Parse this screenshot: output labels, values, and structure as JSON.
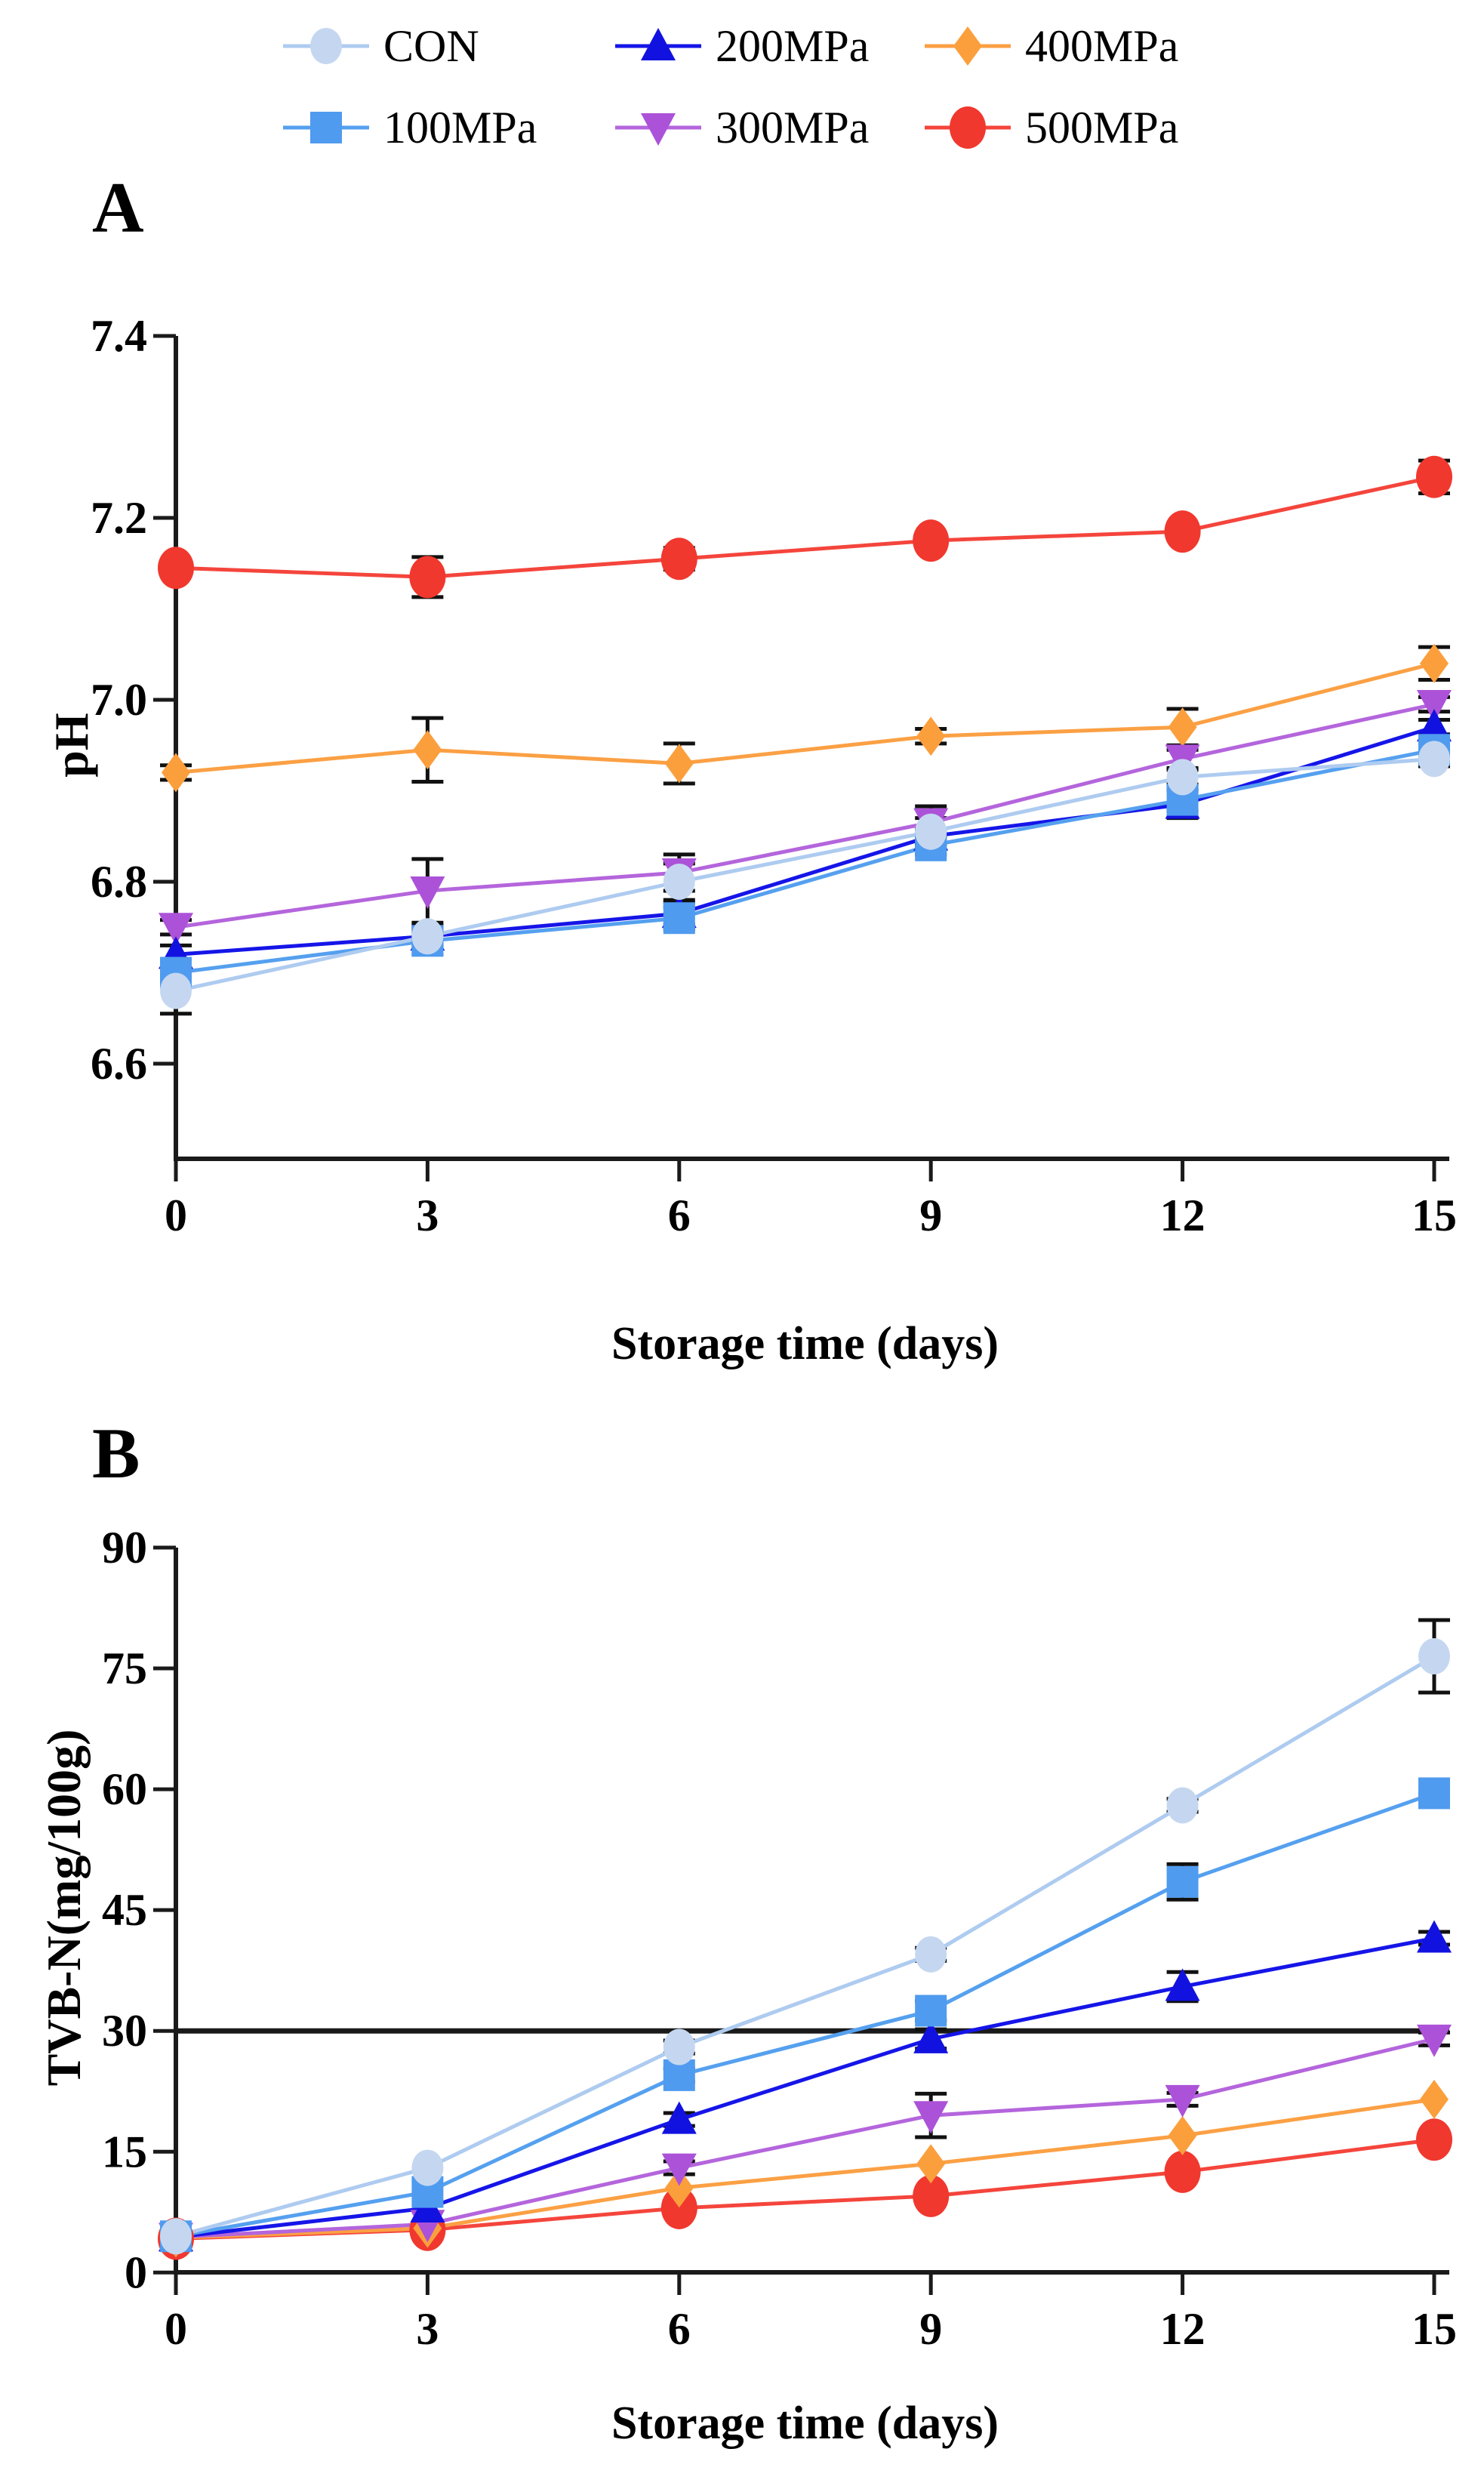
{
  "legend": {
    "rows": [
      [
        {
          "series": "CON",
          "label": "CON"
        },
        {
          "series": "200MPa",
          "label": "200MPa"
        },
        {
          "series": "400MPa",
          "label": "400MPa"
        }
      ],
      [
        {
          "series": "100MPa",
          "label": "100MPa"
        },
        {
          "series": "300MPa",
          "label": "300MPa"
        },
        {
          "series": "500MPa",
          "label": "500MPa"
        }
      ]
    ]
  },
  "series_styles": {
    "CON": {
      "marker": "circle",
      "color": "#C5D7F0",
      "line_color": "#AECBF0"
    },
    "100MPa": {
      "marker": "square",
      "color": "#4F9BEF",
      "line_color": "#55A0EF"
    },
    "200MPa": {
      "marker": "triangle-up",
      "color": "#1212E0",
      "line_color": "#1515E8"
    },
    "300MPa": {
      "marker": "triangle-down",
      "color": "#AC52D8",
      "line_color": "#B465DC"
    },
    "400MPa": {
      "marker": "diamond",
      "color": "#FB9F3D",
      "line_color": "#FBA044"
    },
    "500MPa": {
      "marker": "circle-large",
      "color": "#F0382E",
      "line_color": "#F4453C"
    }
  },
  "error_bar_color": "#111111",
  "axis_color": "#1a1a1a",
  "chart_data": [
    {
      "id": "A",
      "type": "line",
      "panel_label": "A",
      "xlabel": "Storage time (days)",
      "ylabel": "pH",
      "x": [
        0,
        3,
        6,
        9,
        12,
        15
      ],
      "x_tick_labels": [
        "0",
        "3",
        "6",
        "9",
        "12",
        "15"
      ],
      "y_ticks": [
        7.4,
        7.2,
        7.0,
        6.8,
        6.6
      ],
      "y_tick_labels": [
        "7.4",
        "7.2",
        "7.0",
        "6.8",
        "6.6"
      ],
      "ylim": [
        6.5,
        7.4
      ],
      "grid": false,
      "series": [
        {
          "name": "CON",
          "values": [
            6.68,
            6.74,
            6.8,
            6.855,
            6.915,
            6.935
          ],
          "errors": [
            0.025,
            0.012,
            0.02,
            0.015,
            0.008,
            0.008
          ]
        },
        {
          "name": "100MPa",
          "values": [
            6.7,
            6.735,
            6.76,
            6.84,
            6.89,
            6.945
          ],
          "errors": [
            0.012,
            0.015,
            0.012,
            0.01,
            0.012,
            0.008
          ]
        },
        {
          "name": "200MPa",
          "values": [
            6.72,
            6.74,
            6.765,
            6.85,
            6.885,
            6.97
          ],
          "errors": [
            0.01,
            0.008,
            0.012,
            0.008,
            0.015,
            0.008
          ]
        },
        {
          "name": "300MPa",
          "values": [
            6.75,
            6.79,
            6.81,
            6.865,
            6.935,
            6.995
          ],
          "errors": [
            0.008,
            0.035,
            0.02,
            0.018,
            0.01,
            0.008
          ]
        },
        {
          "name": "400MPa",
          "values": [
            6.92,
            6.945,
            6.93,
            6.96,
            6.97,
            7.04
          ],
          "errors": [
            0.008,
            0.035,
            0.022,
            0.008,
            0.02,
            0.018
          ]
        },
        {
          "name": "500MPa",
          "values": [
            7.145,
            7.135,
            7.155,
            7.175,
            7.185,
            7.245
          ],
          "errors": [
            0.008,
            0.022,
            0.012,
            0.008,
            0.008,
            0.018
          ]
        }
      ]
    },
    {
      "id": "B",
      "type": "line",
      "panel_label": "B",
      "xlabel": "Storage time (days)",
      "ylabel": "TVB-N(mg/100g)",
      "x": [
        0,
        3,
        6,
        9,
        12,
        15
      ],
      "x_tick_labels": [
        "0",
        "3",
        "6",
        "9",
        "12",
        "15"
      ],
      "y_ticks": [
        90,
        75,
        60,
        45,
        30,
        15,
        0
      ],
      "y_tick_labels": [
        "90",
        "75",
        "60",
        "45",
        "30",
        "15",
        "0"
      ],
      "ylim": [
        0,
        90
      ],
      "threshold": 30,
      "grid": false,
      "series": [
        {
          "name": "CON",
          "values": [
            4.5,
            13.0,
            28.0,
            39.5,
            58.0,
            76.5
          ],
          "errors": [
            0.3,
            0.5,
            0.8,
            0.8,
            0.8,
            4.5
          ]
        },
        {
          "name": "100MPa",
          "values": [
            4.5,
            10.0,
            24.5,
            32.5,
            48.5,
            59.5
          ],
          "errors": [
            0.3,
            0.5,
            0.8,
            1.2,
            2.2,
            0.8
          ]
        },
        {
          "name": "200MPa",
          "values": [
            4.4,
            8.0,
            19.0,
            29.0,
            35.5,
            41.5
          ],
          "errors": [
            0.3,
            0.5,
            0.8,
            1.2,
            1.8,
            0.8
          ]
        },
        {
          "name": "300MPa",
          "values": [
            4.4,
            6.0,
            13.0,
            19.5,
            21.5,
            29.0
          ],
          "errors": [
            0.3,
            0.5,
            0.8,
            2.7,
            0.8,
            0.8
          ]
        },
        {
          "name": "400MPa",
          "values": [
            4.3,
            5.5,
            10.5,
            13.5,
            17.0,
            21.5
          ],
          "errors": [
            0.3,
            0.4,
            0.5,
            0.5,
            0.5,
            0.5
          ]
        },
        {
          "name": "500MPa",
          "values": [
            4.2,
            5.3,
            8.0,
            9.5,
            12.5,
            16.5
          ],
          "errors": [
            0.3,
            0.4,
            0.5,
            0.5,
            0.5,
            0.5
          ]
        }
      ]
    }
  ]
}
